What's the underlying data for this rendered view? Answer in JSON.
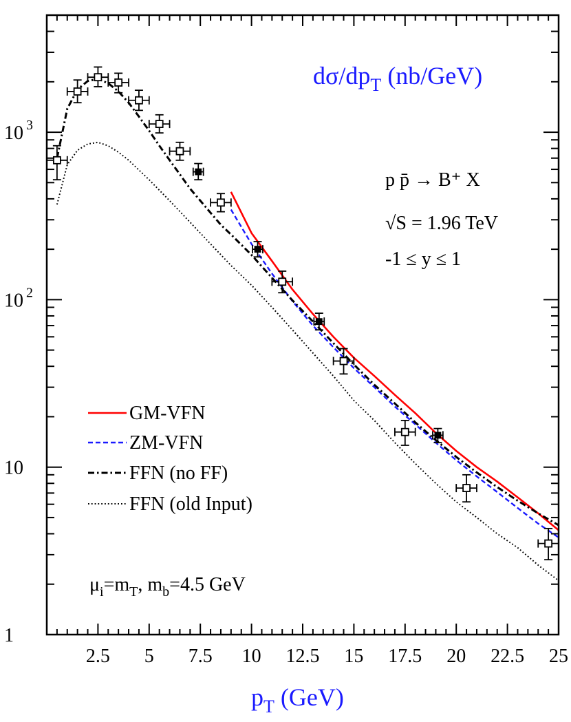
{
  "chart_data": {
    "type": "line",
    "title": "dσ/dp_T (nb/GeV)",
    "title_parts": {
      "main": "dσ/dp",
      "sub": "T",
      "tail": " (nb/GeV)"
    },
    "xlabel": "p_T (GeV)",
    "xlabel_parts": {
      "main": "p",
      "sub": "T",
      "tail": " (GeV)"
    },
    "ylabel": "",
    "xlim": [
      0,
      25
    ],
    "ylim": [
      1,
      5000
    ],
    "y_scale": "log",
    "x_ticks": [
      2.5,
      5,
      7.5,
      10,
      12.5,
      15,
      17.5,
      20,
      22.5,
      25
    ],
    "x_tick_labels": [
      "2.5",
      "5",
      "7.5",
      "10",
      "12.5",
      "15",
      "17.5",
      "20",
      "22.5",
      "25"
    ],
    "y_tick_labels": {
      "1": "1",
      "10": "10",
      "100": {
        "base": "10",
        "exp": "2"
      },
      "1000": {
        "base": "10",
        "exp": "3"
      }
    },
    "process": {
      "line1": "p p̄ → B⁺ X",
      "line2": "√S = 1.96 TeV",
      "line3": "-1 ≤  y ≤ 1"
    },
    "scale_note": "μi=mT, mb=4.5 GeV",
    "scale_note_parts": {
      "mu": "μ",
      "mu_sub": "i",
      "eq1": "=m",
      "m_sub": "T",
      "sep": ", m",
      "b_sub": "b",
      "tail": "=4.5 GeV"
    },
    "legend_placement": "lower-left",
    "colors": {
      "gm_vfn": "#ff0000",
      "zm_vfn": "#1a1aff",
      "ffn": "#000000",
      "ffn_old": "#000000",
      "axis_text": "#1a1aff"
    },
    "series": [
      {
        "name": "GM-VFN",
        "style": "solid",
        "x": [
          9,
          10,
          11,
          12,
          13,
          14,
          15,
          16,
          17,
          18,
          19,
          20,
          21,
          22,
          23,
          24,
          25
        ],
        "y": [
          440,
          250,
          170,
          115,
          82,
          60,
          45,
          35,
          27,
          21,
          16,
          12.5,
          10,
          8.2,
          6.6,
          5.3,
          4.2
        ]
      },
      {
        "name": "ZM-VFN",
        "style": "dashed",
        "x": [
          9,
          10,
          11,
          12,
          13,
          14,
          15,
          16,
          17,
          18,
          19,
          20,
          21,
          22,
          23,
          24,
          25
        ],
        "y": [
          345,
          215,
          143,
          98,
          70,
          52,
          39,
          30,
          23,
          18,
          14,
          11,
          8.8,
          7.1,
          5.7,
          4.6,
          3.8
        ]
      },
      {
        "name": "FFN (no FF)",
        "style": "dash-dot",
        "x": [
          0.5,
          1,
          1.5,
          2,
          2.5,
          3,
          3.5,
          4,
          4.5,
          5,
          5.5,
          6,
          6.5,
          7,
          7.5,
          8,
          8.5,
          9,
          10,
          11,
          12,
          13,
          14,
          15,
          16,
          17,
          18,
          19,
          20,
          21,
          22,
          23,
          24,
          25
        ],
        "y": [
          700,
          1380,
          1800,
          2020,
          2080,
          1960,
          1750,
          1500,
          1240,
          1020,
          830,
          680,
          560,
          460,
          390,
          330,
          280,
          245,
          185,
          135,
          99,
          74,
          55,
          41,
          31,
          24,
          18.5,
          14.5,
          11.5,
          9.3,
          7.6,
          6.3,
          5.3,
          4.5
        ]
      },
      {
        "name": "FFN (old Input)",
        "style": "dotted",
        "x": [
          0.5,
          1,
          1.5,
          2,
          2.5,
          3,
          3.5,
          4,
          5,
          6,
          7,
          8,
          9,
          10,
          11,
          12,
          13,
          14,
          15,
          16,
          17,
          18,
          19,
          20,
          21,
          22,
          23,
          24,
          25
        ],
        "y": [
          370,
          640,
          780,
          850,
          870,
          830,
          760,
          680,
          520,
          390,
          290,
          215,
          160,
          122,
          90,
          66,
          48,
          35,
          25,
          19,
          14,
          10.5,
          8,
          6.2,
          5,
          4,
          3.3,
          2.6,
          2.1
        ]
      }
    ],
    "data_points": [
      {
        "x": 0.5,
        "y": 680,
        "xerr": 0.5,
        "ylo": 520,
        "yhi": 830,
        "marker": "open-square"
      },
      {
        "x": 1.5,
        "y": 1750,
        "xerr": 0.5,
        "ylo": 1500,
        "yhi": 2050,
        "marker": "open-square"
      },
      {
        "x": 2.5,
        "y": 2130,
        "xerr": 0.5,
        "ylo": 1870,
        "yhi": 2450,
        "marker": "open-square"
      },
      {
        "x": 3.5,
        "y": 1980,
        "xerr": 0.5,
        "ylo": 1720,
        "yhi": 2250,
        "marker": "open-square"
      },
      {
        "x": 4.5,
        "y": 1550,
        "xerr": 0.5,
        "ylo": 1350,
        "yhi": 1780,
        "marker": "open-square"
      },
      {
        "x": 5.5,
        "y": 1120,
        "xerr": 0.5,
        "ylo": 990,
        "yhi": 1270,
        "marker": "open-square"
      },
      {
        "x": 6.5,
        "y": 770,
        "xerr": 0.5,
        "ylo": 680,
        "yhi": 870,
        "marker": "open-square"
      },
      {
        "x": 7.4,
        "y": 580,
        "xerr": 0.25,
        "ylo": 520,
        "yhi": 650,
        "marker": "filled-square"
      },
      {
        "x": 8.5,
        "y": 380,
        "xerr": 0.5,
        "ylo": 335,
        "yhi": 430,
        "marker": "open-square"
      },
      {
        "x": 10.3,
        "y": 200,
        "xerr": 0.25,
        "ylo": 180,
        "yhi": 222,
        "marker": "filled-square"
      },
      {
        "x": 11.5,
        "y": 128,
        "xerr": 0.5,
        "ylo": 110,
        "yhi": 148,
        "marker": "open-square"
      },
      {
        "x": 13.3,
        "y": 74,
        "xerr": 0.25,
        "ylo": 66,
        "yhi": 83,
        "marker": "filled-square"
      },
      {
        "x": 14.5,
        "y": 43,
        "xerr": 0.5,
        "ylo": 36,
        "yhi": 51,
        "marker": "open-square"
      },
      {
        "x": 17.5,
        "y": 16.2,
        "xerr": 0.5,
        "ylo": 13.5,
        "yhi": 19,
        "marker": "open-square"
      },
      {
        "x": 19.1,
        "y": 15.5,
        "xerr": 0.25,
        "ylo": 14,
        "yhi": 17,
        "marker": "filled-square"
      },
      {
        "x": 20.5,
        "y": 7.5,
        "xerr": 0.5,
        "ylo": 6.2,
        "yhi": 9,
        "marker": "open-square"
      },
      {
        "x": 24.5,
        "y": 3.5,
        "xerr": 0.5,
        "ylo": 2.8,
        "yhi": 4.3,
        "marker": "open-square"
      }
    ]
  }
}
